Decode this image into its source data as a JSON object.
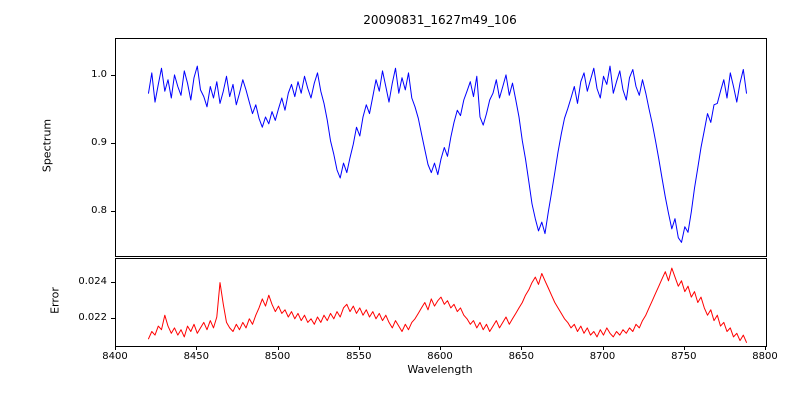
{
  "title": "20090831_1627m49_106",
  "chart_data": {
    "type": "line",
    "title": "20090831_1627m49_106",
    "xlabel": "Wavelength",
    "grid": false,
    "legend": "none",
    "x_range": [
      8400,
      8800
    ],
    "x_ticks": [
      8400,
      8450,
      8500,
      8550,
      8600,
      8650,
      8700,
      8750,
      8800
    ],
    "x_tick_labels": [
      "8400",
      "8450",
      "8500",
      "8550",
      "8600",
      "8650",
      "8700",
      "8750",
      "8800"
    ],
    "x_start": 8420,
    "x_step": 2,
    "panels": [
      {
        "name": "spectrum",
        "ylabel": "Spectrum",
        "color": "#0000ff",
        "ylim": [
          0.735,
          1.055
        ],
        "y_ticks": [
          0.8,
          0.9,
          1.0
        ],
        "y_tick_labels": [
          "0.8",
          "0.9",
          "1.0"
        ],
        "values": [
          0.975,
          1.005,
          0.962,
          0.988,
          1.012,
          0.978,
          0.995,
          0.968,
          1.002,
          0.985,
          0.972,
          1.008,
          0.99,
          0.965,
          0.998,
          1.015,
          0.98,
          0.97,
          0.955,
          0.985,
          0.968,
          0.992,
          0.96,
          0.978,
          1.0,
          0.97,
          0.988,
          0.958,
          0.975,
          0.995,
          0.98,
          0.962,
          0.945,
          0.958,
          0.938,
          0.925,
          0.94,
          0.93,
          0.948,
          0.935,
          0.952,
          0.968,
          0.95,
          0.975,
          0.988,
          0.97,
          0.992,
          0.975,
          1.0,
          0.982,
          0.968,
          0.99,
          1.005,
          0.978,
          0.96,
          0.935,
          0.905,
          0.885,
          0.862,
          0.85,
          0.872,
          0.858,
          0.88,
          0.9,
          0.925,
          0.912,
          0.94,
          0.958,
          0.945,
          0.97,
          0.995,
          0.978,
          1.008,
          0.985,
          0.962,
          0.99,
          1.012,
          0.975,
          0.998,
          0.98,
          1.005,
          0.968,
          0.955,
          0.938,
          0.915,
          0.892,
          0.87,
          0.858,
          0.872,
          0.855,
          0.878,
          0.895,
          0.882,
          0.91,
          0.932,
          0.95,
          0.942,
          0.965,
          0.978,
          0.992,
          0.97,
          1.0,
          0.94,
          0.928,
          0.945,
          0.965,
          0.975,
          0.995,
          0.968,
          0.985,
          1.002,
          0.972,
          0.99,
          0.965,
          0.94,
          0.905,
          0.878,
          0.845,
          0.812,
          0.79,
          0.772,
          0.785,
          0.768,
          0.8,
          0.828,
          0.858,
          0.888,
          0.915,
          0.938,
          0.952,
          0.968,
          0.985,
          0.96,
          0.992,
          1.005,
          0.978,
          0.995,
          1.012,
          0.982,
          0.968,
          1.0,
          0.988,
          1.015,
          0.975,
          0.992,
          1.008,
          0.98,
          0.965,
          0.998,
          1.01,
          0.985,
          0.972,
          0.995,
          0.975,
          0.952,
          0.93,
          0.905,
          0.878,
          0.85,
          0.822,
          0.798,
          0.775,
          0.79,
          0.762,
          0.755,
          0.778,
          0.77,
          0.8,
          0.835,
          0.865,
          0.895,
          0.92,
          0.945,
          0.932,
          0.958,
          0.96,
          0.978,
          0.995,
          0.968,
          1.005,
          0.985,
          0.962,
          0.99,
          1.01,
          0.975
        ]
      },
      {
        "name": "error",
        "ylabel": "Error",
        "color": "#ff0000",
        "ylim": [
          0.0205,
          0.0253
        ],
        "y_ticks": [
          0.022,
          0.024
        ],
        "y_tick_labels": [
          "0.022",
          "0.024"
        ],
        "values": [
          0.0209,
          0.0213,
          0.0211,
          0.0216,
          0.0214,
          0.0222,
          0.0216,
          0.0212,
          0.0215,
          0.0211,
          0.0214,
          0.021,
          0.0216,
          0.0213,
          0.0217,
          0.0212,
          0.0215,
          0.0218,
          0.0214,
          0.0219,
          0.0215,
          0.0221,
          0.024,
          0.0228,
          0.0218,
          0.0215,
          0.0213,
          0.0217,
          0.0214,
          0.0218,
          0.0215,
          0.022,
          0.0217,
          0.0222,
          0.0226,
          0.0231,
          0.0227,
          0.0233,
          0.0228,
          0.0224,
          0.0227,
          0.0223,
          0.0225,
          0.0221,
          0.0224,
          0.022,
          0.0223,
          0.0219,
          0.0222,
          0.0218,
          0.022,
          0.0217,
          0.0221,
          0.0218,
          0.0222,
          0.0219,
          0.0223,
          0.022,
          0.0224,
          0.0221,
          0.0226,
          0.0228,
          0.0224,
          0.0227,
          0.0223,
          0.0226,
          0.0222,
          0.0225,
          0.0221,
          0.0224,
          0.022,
          0.0223,
          0.0219,
          0.0222,
          0.0218,
          0.0215,
          0.0219,
          0.0216,
          0.0213,
          0.0217,
          0.0214,
          0.0218,
          0.022,
          0.0223,
          0.0226,
          0.0229,
          0.0225,
          0.0231,
          0.0227,
          0.023,
          0.0232,
          0.0228,
          0.023,
          0.0226,
          0.0228,
          0.0224,
          0.0226,
          0.0222,
          0.022,
          0.0217,
          0.0219,
          0.0215,
          0.0218,
          0.0214,
          0.0217,
          0.0213,
          0.0216,
          0.0219,
          0.0215,
          0.0218,
          0.0221,
          0.0217,
          0.022,
          0.0223,
          0.0226,
          0.0229,
          0.0233,
          0.0236,
          0.024,
          0.0243,
          0.0239,
          0.0245,
          0.0241,
          0.0237,
          0.0233,
          0.0229,
          0.0226,
          0.0223,
          0.022,
          0.0218,
          0.0215,
          0.0217,
          0.0213,
          0.0216,
          0.0212,
          0.0215,
          0.0211,
          0.0213,
          0.021,
          0.0214,
          0.0211,
          0.0215,
          0.0212,
          0.021,
          0.0213,
          0.0211,
          0.0214,
          0.0212,
          0.0215,
          0.0213,
          0.0217,
          0.0215,
          0.0219,
          0.0222,
          0.0226,
          0.023,
          0.0234,
          0.0238,
          0.0242,
          0.0246,
          0.0241,
          0.0248,
          0.0243,
          0.0238,
          0.0241,
          0.0235,
          0.0238,
          0.0232,
          0.0235,
          0.0229,
          0.0232,
          0.0226,
          0.0222,
          0.0225,
          0.0219,
          0.0222,
          0.0216,
          0.0218,
          0.0213,
          0.0215,
          0.021,
          0.0212,
          0.0208,
          0.0211,
          0.0207
        ]
      }
    ]
  }
}
